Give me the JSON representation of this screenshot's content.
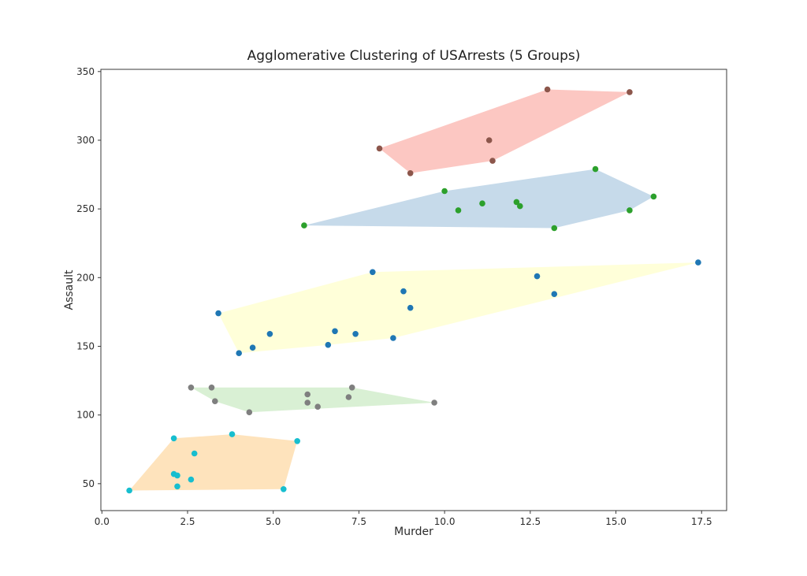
{
  "figure": {
    "background": "#ffffff"
  },
  "chart_data": {
    "type": "scatter",
    "title": "Agglomerative Clustering of USArrests (5 Groups)",
    "xlabel": "Murder",
    "ylabel": "Assault",
    "xlim": [
      -0.03,
      18.23
    ],
    "ylim": [
      30.4,
      351.6
    ],
    "xticks": [
      0.0,
      2.5,
      5.0,
      7.5,
      10.0,
      12.5,
      15.0,
      17.5
    ],
    "xtick_labels": [
      "0.0",
      "2.5",
      "5.0",
      "7.5",
      "10.0",
      "12.5",
      "15.0",
      "17.5"
    ],
    "yticks": [
      50,
      100,
      150,
      200,
      250,
      300,
      350
    ],
    "ytick_labels": [
      "50",
      "100",
      "150",
      "200",
      "250",
      "300",
      "350"
    ],
    "grid": false,
    "legend": false,
    "text_color": "#2b2b2b",
    "spine_color": "#3a3a3a",
    "clusters": [
      {
        "name": "brown",
        "point_color": "#8c564b",
        "hull_color": "#fbb4ae",
        "points": [
          [
            8.1,
            294
          ],
          [
            9.0,
            276
          ],
          [
            11.3,
            300
          ],
          [
            11.4,
            285
          ],
          [
            13.0,
            337
          ],
          [
            15.4,
            335
          ]
        ]
      },
      {
        "name": "green",
        "point_color": "#2ca02c",
        "hull_color": "#b3cde3",
        "points": [
          [
            5.9,
            238
          ],
          [
            10.0,
            263
          ],
          [
            10.4,
            249
          ],
          [
            11.1,
            254
          ],
          [
            12.1,
            255
          ],
          [
            12.2,
            252
          ],
          [
            13.2,
            236
          ],
          [
            14.4,
            279
          ],
          [
            15.4,
            249
          ],
          [
            16.1,
            259
          ]
        ]
      },
      {
        "name": "blue",
        "point_color": "#1f77b4",
        "hull_color": "#ffffcc",
        "points": [
          [
            3.4,
            174
          ],
          [
            4.0,
            145
          ],
          [
            4.4,
            149
          ],
          [
            4.9,
            159
          ],
          [
            6.6,
            151
          ],
          [
            6.8,
            161
          ],
          [
            7.4,
            159
          ],
          [
            7.9,
            204
          ],
          [
            8.5,
            156
          ],
          [
            8.8,
            190
          ],
          [
            9.0,
            178
          ],
          [
            12.7,
            201
          ],
          [
            13.2,
            188
          ],
          [
            17.4,
            211
          ]
        ]
      },
      {
        "name": "gray",
        "point_color": "#7f7f7f",
        "hull_color": "#ccebc5",
        "points": [
          [
            2.6,
            120
          ],
          [
            3.2,
            120
          ],
          [
            3.3,
            110
          ],
          [
            4.3,
            102
          ],
          [
            6.0,
            115
          ],
          [
            6.0,
            109
          ],
          [
            6.3,
            106
          ],
          [
            7.2,
            113
          ],
          [
            7.3,
            120
          ],
          [
            9.7,
            109
          ]
        ]
      },
      {
        "name": "cyan",
        "point_color": "#17becf",
        "hull_color": "#fed9a6",
        "points": [
          [
            0.8,
            45
          ],
          [
            2.1,
            83
          ],
          [
            2.1,
            57
          ],
          [
            2.2,
            56
          ],
          [
            2.2,
            48
          ],
          [
            2.6,
            53
          ],
          [
            2.7,
            72
          ],
          [
            3.8,
            86
          ],
          [
            5.3,
            46
          ],
          [
            5.7,
            81
          ]
        ]
      }
    ]
  }
}
